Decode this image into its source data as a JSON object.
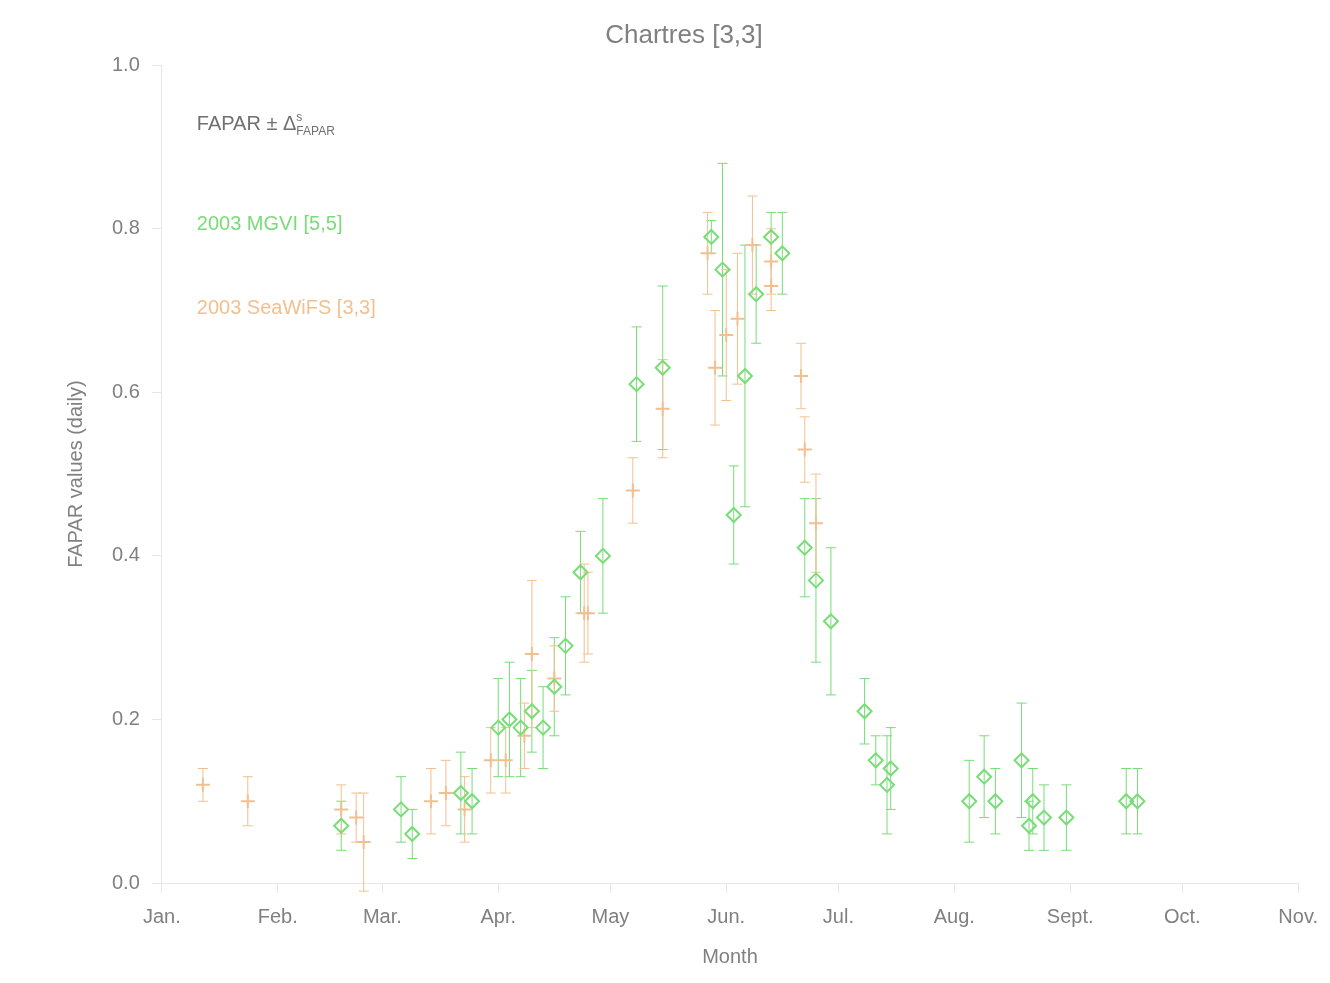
{
  "chart_data": {
    "type": "scatter",
    "title": "Chartres [3,3]",
    "xlabel": "Month",
    "ylabel": "FAPAR values (daily)",
    "annotations": [
      "FAPAR ± Δ$^{s}$$_{FAPAR}$"
    ],
    "xlim": [
      "--01-01",
      "--11-01"
    ],
    "xticks": [
      {
        "value": "--01-01",
        "label": "Jan."
      },
      {
        "value": "--02-01",
        "label": "Feb."
      },
      {
        "value": "--03-01",
        "label": "Mar."
      },
      {
        "value": "--04-01",
        "label": "Apr."
      },
      {
        "value": "--05-01",
        "label": "May"
      },
      {
        "value": "--06-01",
        "label": "Jun."
      },
      {
        "value": "--07-01",
        "label": "Jul."
      },
      {
        "value": "--08-01",
        "label": "Aug."
      },
      {
        "value": "--09-01",
        "label": "Sept."
      },
      {
        "value": "--10-01",
        "label": "Oct."
      },
      {
        "value": "--11-01",
        "label": "Nov."
      }
    ],
    "ylim": [
      0,
      1
    ],
    "yticks": [
      {
        "value": 0,
        "label": "0.0"
      },
      0.2,
      0.4,
      0.6,
      0.8,
      {
        "value": 1,
        "label": "1.0"
      }
    ],
    "legend": "top left",
    "grid": false,
    "series": [
      {
        "name": "2003 MGVI [5,5]",
        "color": "#77dd77",
        "marker": "diamond",
        "x": [
          "--02-18",
          "--03-06",
          "--03-09",
          "--03-22",
          "--03-25",
          "--04-01",
          "--04-04",
          "--04-07",
          "--04-10",
          "--04-13",
          "--04-16",
          "--04-19",
          "--04-23",
          "--04-29",
          "--05-08",
          "--05-15",
          "--05-28",
          "--05-31",
          "--06-03",
          "--06-06",
          "--06-09",
          "--06-13",
          "--06-16",
          "--06-22",
          "--06-25",
          "--06-29",
          "--07-08",
          "--07-11",
          "--07-14",
          "--07-15",
          "--08-05",
          "--08-09",
          "--08-12",
          "--08-19",
          "--08-21",
          "--08-22",
          "--08-25",
          "--08-31",
          "--09-16",
          "--09-19"
        ],
        "values": [
          0.07,
          0.09,
          0.06,
          0.11,
          0.1,
          0.19,
          0.2,
          0.19,
          0.21,
          0.19,
          0.24,
          0.29,
          0.38,
          0.4,
          0.61,
          0.63,
          0.79,
          0.75,
          0.45,
          0.62,
          0.72,
          0.79,
          0.77,
          0.41,
          0.37,
          0.32,
          0.21,
          0.15,
          0.12,
          0.14,
          0.1,
          0.13,
          0.1,
          0.15,
          0.07,
          0.1,
          0.08,
          0.08,
          0.1,
          0.1
        ],
        "errors": [
          0.03,
          0.04,
          0.03,
          0.05,
          0.04,
          0.06,
          0.07,
          0.06,
          0.05,
          0.05,
          0.06,
          0.06,
          0.05,
          0.07,
          0.07,
          0.1,
          0.02,
          0.13,
          0.06,
          0.16,
          0.06,
          0.03,
          0.05,
          0.06,
          0.1,
          0.09,
          0.04,
          0.03,
          0.06,
          0.05,
          0.05,
          0.05,
          0.04,
          0.07,
          0.03,
          0.04,
          0.04,
          0.04,
          0.04,
          0.04
        ]
      },
      {
        "name": "2003 SeaWiFS [3,3]",
        "color": "#f2c090",
        "marker": "cross",
        "x": [
          "--01-12",
          "--01-24",
          "--02-18",
          "--02-22",
          "--02-24",
          "--03-14",
          "--03-18",
          "--03-23",
          "--03-30",
          "--04-03",
          "--04-08",
          "--04-10",
          "--04-16",
          "--04-24",
          "--04-25",
          "--05-07",
          "--05-15",
          "--05-27",
          "--05-29",
          "--06-01",
          "--06-04",
          "--06-08",
          "--06-13",
          "--06-13",
          "--06-21",
          "--06-22",
          "--06-25"
        ],
        "values": [
          0.12,
          0.1,
          0.09,
          0.08,
          0.05,
          0.1,
          0.11,
          0.09,
          0.15,
          0.15,
          0.18,
          0.28,
          0.25,
          0.33,
          0.33,
          0.48,
          0.58,
          0.77,
          0.63,
          0.67,
          0.69,
          0.78,
          0.76,
          0.73,
          0.62,
          0.53,
          0.44
        ],
        "errors": [
          0.02,
          0.03,
          0.03,
          0.03,
          0.06,
          0.04,
          0.04,
          0.04,
          0.04,
          0.04,
          0.04,
          0.09,
          0.04,
          0.06,
          0.05,
          0.04,
          0.06,
          0.05,
          0.07,
          0.08,
          0.08,
          0.06,
          0.04,
          0.03,
          0.04,
          0.04,
          0.06
        ]
      }
    ]
  }
}
